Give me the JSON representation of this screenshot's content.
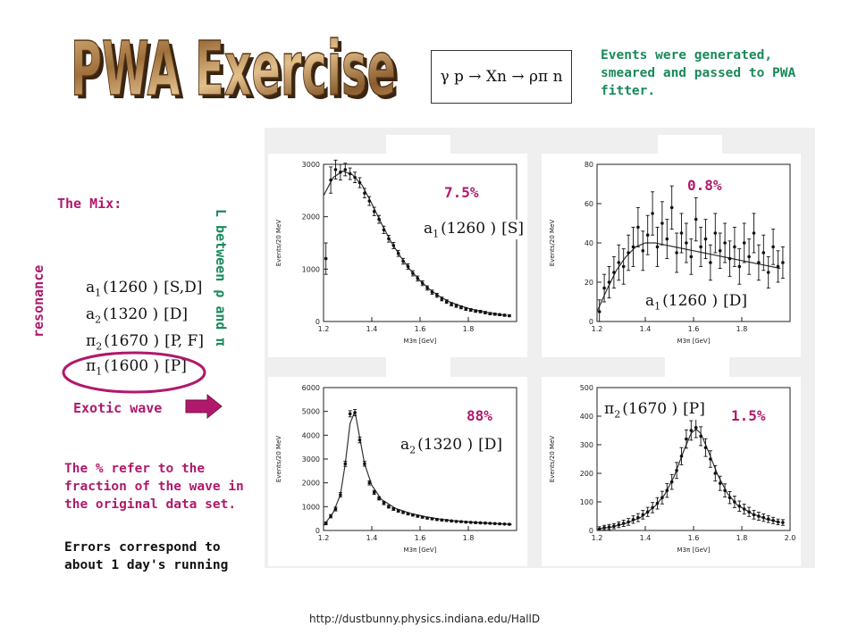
{
  "title": "PWA Exercise",
  "reaction": "γ p → Xn → ρπ n",
  "intro_text": "Events were generated, smeared and passed to PWA fitter.",
  "mix_label": "The Mix:",
  "resonance_label": "resonance",
  "l_between_label": "L between ρ and π",
  "waves": [
    {
      "name": "a",
      "sub": "1",
      "mass": "(1260 )",
      "wave": "[S,D]"
    },
    {
      "name": "a",
      "sub": "2",
      "mass": "(1320 )",
      "wave": "[D]"
    },
    {
      "name": "π",
      "sub": "2",
      "mass": "(1670 )",
      "wave": "[P, F]"
    },
    {
      "name": "π",
      "sub": "1",
      "mass": "(1600 )",
      "wave": "[P]"
    }
  ],
  "exotic_label": "Exotic wave",
  "pct_note": "The % refer to the fraction of the wave in the original data set.",
  "errors_note": "Errors correspond to about 1 day's running",
  "url": "http://dustbunny.physics.indiana.edu/HallD",
  "colors": {
    "magenta": "#b0196b",
    "green": "#1a8a5a",
    "arrow": "#b0196b"
  },
  "chart_data": [
    {
      "type": "scatter",
      "panel": "top-left",
      "wave_label": {
        "name": "a",
        "sub": "1",
        "mass": "(1260 )",
        "wave": "[S]"
      },
      "percent": "7.5%",
      "ylabel": "Events/20 MeV",
      "xlabel": "M3π [GeV]",
      "xlim": [
        1.2,
        2.0
      ],
      "ylim": [
        0,
        3000
      ],
      "xticks": [
        1.2,
        1.4,
        1.6,
        1.8
      ],
      "yticks": [
        0,
        1000,
        2000,
        3000
      ],
      "x": [
        1.21,
        1.23,
        1.25,
        1.27,
        1.29,
        1.31,
        1.33,
        1.35,
        1.37,
        1.39,
        1.41,
        1.43,
        1.45,
        1.47,
        1.49,
        1.51,
        1.53,
        1.55,
        1.57,
        1.59,
        1.61,
        1.63,
        1.65,
        1.67,
        1.69,
        1.71,
        1.73,
        1.75,
        1.77,
        1.79,
        1.81,
        1.83,
        1.85,
        1.87,
        1.89,
        1.91,
        1.93,
        1.95,
        1.97
      ],
      "y": [
        1200,
        2700,
        2900,
        2850,
        2900,
        2820,
        2750,
        2650,
        2450,
        2300,
        2100,
        1950,
        1750,
        1580,
        1450,
        1300,
        1150,
        1050,
        920,
        820,
        730,
        640,
        560,
        500,
        430,
        380,
        330,
        300,
        270,
        240,
        220,
        200,
        190,
        170,
        150,
        140,
        130,
        120,
        110
      ],
      "err": [
        300,
        250,
        180,
        150,
        120,
        110,
        100,
        95,
        90,
        85,
        80,
        75,
        70,
        65,
        60,
        58,
        55,
        52,
        50,
        48,
        45,
        42,
        40,
        38,
        36,
        34,
        32,
        30,
        28,
        27,
        26,
        25,
        24,
        23,
        22,
        21,
        20,
        19,
        18
      ],
      "fit": [
        [
          1.2,
          2400
        ],
        [
          1.24,
          2750
        ],
        [
          1.28,
          2870
        ],
        [
          1.32,
          2800
        ],
        [
          1.36,
          2600
        ],
        [
          1.4,
          2250
        ],
        [
          1.44,
          1870
        ],
        [
          1.48,
          1520
        ],
        [
          1.52,
          1230
        ],
        [
          1.56,
          980
        ],
        [
          1.6,
          780
        ],
        [
          1.64,
          610
        ],
        [
          1.68,
          480
        ],
        [
          1.72,
          380
        ],
        [
          1.76,
          310
        ],
        [
          1.8,
          250
        ],
        [
          1.84,
          205
        ],
        [
          1.88,
          170
        ],
        [
          1.92,
          140
        ],
        [
          1.96,
          115
        ]
      ]
    },
    {
      "type": "scatter",
      "panel": "top-right",
      "wave_label": {
        "name": "a",
        "sub": "1",
        "mass": "(1260 )",
        "wave": "[D]"
      },
      "percent": "0.8%",
      "ylabel": "Events/20 MeV",
      "xlabel": "M3π [GeV]",
      "xlim": [
        1.2,
        2.0
      ],
      "ylim": [
        0,
        80
      ],
      "xticks": [
        1.2,
        1.4,
        1.6,
        1.8
      ],
      "yticks": [
        0,
        20,
        40,
        60,
        80
      ],
      "x": [
        1.21,
        1.23,
        1.25,
        1.27,
        1.29,
        1.31,
        1.33,
        1.35,
        1.37,
        1.39,
        1.41,
        1.43,
        1.45,
        1.47,
        1.49,
        1.51,
        1.53,
        1.55,
        1.57,
        1.59,
        1.61,
        1.63,
        1.65,
        1.67,
        1.69,
        1.71,
        1.73,
        1.75,
        1.77,
        1.79,
        1.81,
        1.83,
        1.85,
        1.87,
        1.89,
        1.91,
        1.93,
        1.95,
        1.97
      ],
      "y": [
        5,
        17,
        20,
        25,
        30,
        28,
        35,
        38,
        48,
        36,
        44,
        55,
        38,
        50,
        42,
        58,
        35,
        45,
        40,
        33,
        52,
        38,
        42,
        30,
        45,
        36,
        40,
        32,
        38,
        28,
        40,
        33,
        45,
        30,
        35,
        25,
        38,
        28,
        30
      ],
      "err": [
        6,
        7,
        8,
        8,
        9,
        9,
        9,
        10,
        10,
        10,
        10,
        11,
        10,
        11,
        10,
        11,
        10,
        10,
        10,
        9,
        11,
        10,
        10,
        9,
        10,
        9,
        10,
        9,
        10,
        9,
        10,
        9,
        10,
        9,
        9,
        8,
        9,
        8,
        8
      ],
      "fit": [
        [
          1.2,
          5
        ],
        [
          1.24,
          16
        ],
        [
          1.28,
          26
        ],
        [
          1.32,
          33
        ],
        [
          1.36,
          38
        ],
        [
          1.4,
          40
        ],
        [
          1.44,
          40
        ],
        [
          1.48,
          39
        ],
        [
          1.52,
          38
        ],
        [
          1.56,
          37
        ],
        [
          1.6,
          36
        ],
        [
          1.64,
          35
        ],
        [
          1.68,
          34
        ],
        [
          1.72,
          33
        ],
        [
          1.76,
          32
        ],
        [
          1.8,
          31
        ],
        [
          1.84,
          30
        ],
        [
          1.88,
          29
        ],
        [
          1.92,
          28
        ],
        [
          1.96,
          27
        ]
      ]
    },
    {
      "type": "scatter",
      "panel": "bottom-left",
      "wave_label": {
        "name": "a",
        "sub": "2",
        "mass": "(1320 )",
        "wave": "[D]"
      },
      "percent": "88%",
      "ylabel": "Events/20 MeV",
      "xlabel": "M3π [GeV]",
      "xlim": [
        1.2,
        2.0
      ],
      "ylim": [
        0,
        6000
      ],
      "xticks": [
        1.2,
        1.4,
        1.6,
        1.8
      ],
      "yticks": [
        0,
        1000,
        2000,
        3000,
        4000,
        5000,
        6000
      ],
      "x": [
        1.21,
        1.23,
        1.25,
        1.27,
        1.29,
        1.31,
        1.33,
        1.35,
        1.37,
        1.39,
        1.41,
        1.43,
        1.45,
        1.47,
        1.49,
        1.51,
        1.53,
        1.55,
        1.57,
        1.59,
        1.61,
        1.63,
        1.65,
        1.67,
        1.69,
        1.71,
        1.73,
        1.75,
        1.77,
        1.79,
        1.81,
        1.83,
        1.85,
        1.87,
        1.89,
        1.91,
        1.93,
        1.95,
        1.97
      ],
      "y": [
        300,
        600,
        900,
        1500,
        2800,
        4900,
        4950,
        3800,
        2800,
        2000,
        1600,
        1350,
        1150,
        1000,
        900,
        820,
        760,
        700,
        650,
        600,
        560,
        520,
        490,
        460,
        440,
        420,
        400,
        380,
        370,
        350,
        340,
        330,
        320,
        310,
        300,
        290,
        280,
        270,
        260
      ],
      "err": [
        60,
        70,
        80,
        90,
        110,
        130,
        130,
        120,
        100,
        90,
        80,
        70,
        65,
        60,
        55,
        52,
        50,
        48,
        46,
        44,
        42,
        40,
        38,
        37,
        36,
        35,
        34,
        33,
        32,
        31,
        30,
        29,
        28,
        27,
        26,
        25,
        24,
        23,
        22
      ],
      "fit": [
        [
          1.2,
          200
        ],
        [
          1.24,
          750
        ],
        [
          1.27,
          1500
        ],
        [
          1.29,
          2800
        ],
        [
          1.31,
          4500
        ],
        [
          1.33,
          5000
        ],
        [
          1.35,
          3900
        ],
        [
          1.37,
          2800
        ],
        [
          1.4,
          1900
        ],
        [
          1.44,
          1300
        ],
        [
          1.5,
          920
        ],
        [
          1.56,
          720
        ],
        [
          1.62,
          580
        ],
        [
          1.68,
          480
        ],
        [
          1.74,
          410
        ],
        [
          1.8,
          360
        ],
        [
          1.86,
          320
        ],
        [
          1.92,
          290
        ],
        [
          1.98,
          260
        ]
      ]
    },
    {
      "type": "scatter",
      "panel": "bottom-right",
      "wave_label": {
        "name": "π",
        "sub": "2",
        "mass": "(1670 )",
        "wave": "[P]"
      },
      "percent": "1.5%",
      "ylabel": "Events/20 MeV",
      "xlabel": "M3π [GeV]",
      "xlim": [
        1.2,
        2.0
      ],
      "ylim": [
        0,
        500
      ],
      "xticks": [
        1.2,
        1.4,
        1.6,
        1.8,
        2.0
      ],
      "yticks": [
        0,
        100,
        200,
        300,
        400,
        500
      ],
      "x": [
        1.21,
        1.23,
        1.25,
        1.27,
        1.29,
        1.31,
        1.33,
        1.35,
        1.37,
        1.39,
        1.41,
        1.43,
        1.45,
        1.47,
        1.49,
        1.51,
        1.53,
        1.55,
        1.57,
        1.59,
        1.61,
        1.63,
        1.65,
        1.67,
        1.69,
        1.71,
        1.73,
        1.75,
        1.77,
        1.79,
        1.81,
        1.83,
        1.85,
        1.87,
        1.89,
        1.91,
        1.93,
        1.95,
        1.97
      ],
      "y": [
        5,
        10,
        12,
        15,
        20,
        25,
        30,
        38,
        45,
        55,
        65,
        80,
        95,
        115,
        140,
        170,
        210,
        260,
        320,
        350,
        360,
        330,
        290,
        250,
        200,
        165,
        140,
        115,
        100,
        85,
        75,
        65,
        55,
        50,
        45,
        40,
        35,
        30,
        28
      ],
      "err": [
        8,
        8,
        9,
        9,
        10,
        11,
        12,
        13,
        14,
        15,
        16,
        18,
        20,
        22,
        24,
        26,
        28,
        30,
        32,
        34,
        35,
        33,
        31,
        29,
        27,
        25,
        23,
        21,
        20,
        18,
        17,
        16,
        15,
        14,
        13,
        12,
        11,
        10,
        10
      ],
      "fit": [
        [
          1.2,
          5
        ],
        [
          1.26,
          12
        ],
        [
          1.32,
          25
        ],
        [
          1.38,
          45
        ],
        [
          1.44,
          85
        ],
        [
          1.48,
          125
        ],
        [
          1.52,
          190
        ],
        [
          1.56,
          280
        ],
        [
          1.59,
          340
        ],
        [
          1.61,
          355
        ],
        [
          1.63,
          340
        ],
        [
          1.66,
          280
        ],
        [
          1.7,
          195
        ],
        [
          1.74,
          130
        ],
        [
          1.78,
          90
        ],
        [
          1.84,
          60
        ],
        [
          1.9,
          40
        ],
        [
          1.96,
          28
        ]
      ]
    }
  ]
}
